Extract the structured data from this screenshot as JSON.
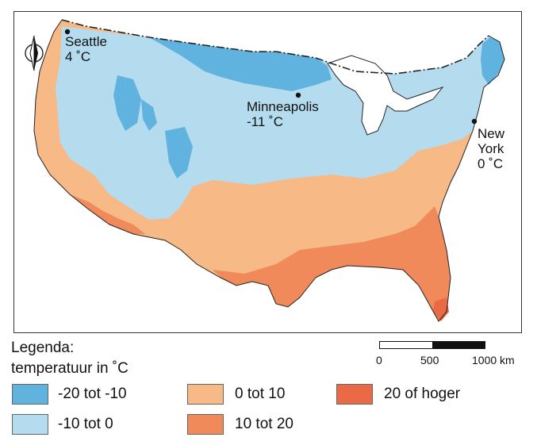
{
  "cities": [
    {
      "name": "Seattle",
      "temp": "4 ˚C"
    },
    {
      "name": "Minneapolis",
      "temp": "-11 ˚C"
    },
    {
      "name": "New",
      "name2": "York",
      "temp": "0 ˚C"
    }
  ],
  "legend": {
    "title_line1": "Legenda:",
    "title_line2": "temperatuur in ˚C",
    "items": [
      {
        "label": "-20 tot -10",
        "color": "#5fb3de"
      },
      {
        "label": "-10 tot 0",
        "color": "#b4dcee"
      },
      {
        "label": "0 tot 10",
        "color": "#f7b985"
      },
      {
        "label": "10 tot 20",
        "color": "#f08a5a"
      },
      {
        "label": "20 of hoger",
        "color": "#ea6a45"
      }
    ]
  },
  "scale_bar": {
    "labels": [
      "0",
      "500",
      "1000 km"
    ]
  },
  "compass": {
    "letter": "N"
  },
  "colors": {
    "water": "#ffffff",
    "border": "#222222"
  }
}
